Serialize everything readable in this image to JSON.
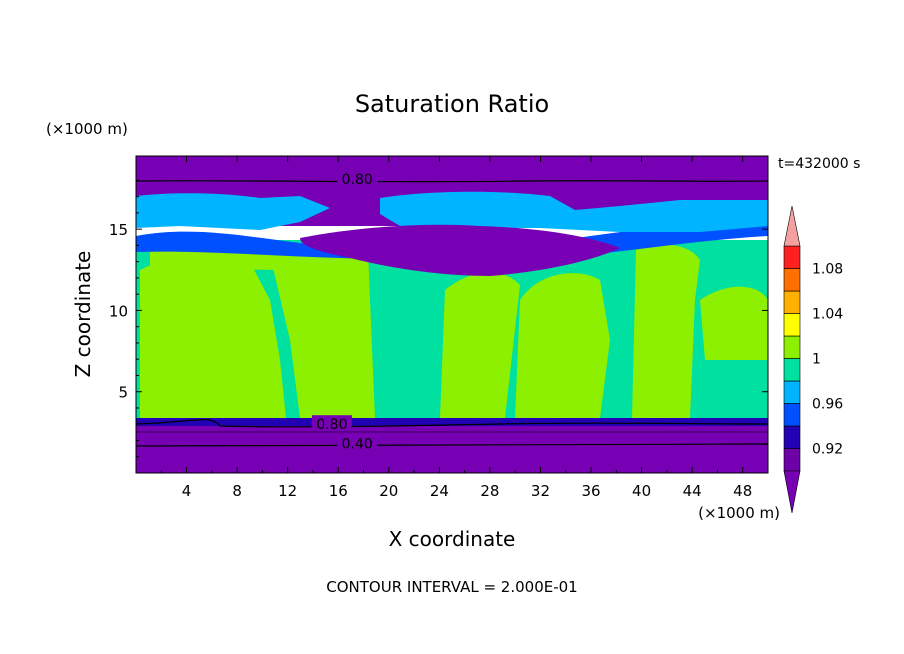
{
  "chart_data": {
    "type": "heatmap",
    "title": "Saturation Ratio",
    "xlabel": "X coordinate",
    "ylabel": "Z coordinate",
    "x_unit": "(×1000 m)",
    "y_unit": "(×1000 m)",
    "time_label": "t=432000 s",
    "footer": "CONTOUR INTERVAL = 2.000E-01",
    "xlim": [
      0,
      50
    ],
    "ylim": [
      0,
      19.5
    ],
    "x_ticks": [
      "4",
      "8",
      "12",
      "16",
      "20",
      "24",
      "28",
      "32",
      "36",
      "40",
      "44",
      "48"
    ],
    "y_ticks": [
      "5",
      "10",
      "15"
    ],
    "colorbar": {
      "levels": [
        0.9,
        0.92,
        0.94,
        0.96,
        0.98,
        1.0,
        1.02,
        1.04,
        1.06,
        1.08,
        1.1
      ],
      "labels": [
        "0.92",
        "0.96",
        "1",
        "1.04",
        "1.08"
      ],
      "colors": [
        "#6e00a8",
        "#2200b4",
        "#0050ff",
        "#00b4ff",
        "#00e0a0",
        "#8cf000",
        "#ffff00",
        "#ffb000",
        "#ff7000",
        "#ff2020"
      ],
      "under_color": "#7800b4",
      "over_color": "#f4a0a0"
    },
    "contour_labels": [
      {
        "value": "0.80",
        "x": 17.5,
        "y": 18.1
      },
      {
        "value": "0.80",
        "x": 15.5,
        "y": 3.0
      },
      {
        "value": "0.40",
        "x": 17.5,
        "y": 1.8
      }
    ],
    "field_bands": [
      {
        "zmin": 0.0,
        "zmax": 3.2,
        "value": "<0.90"
      },
      {
        "zmin": 3.2,
        "zmax": 13.5,
        "value": "0.98-1.02"
      },
      {
        "zmin": 13.5,
        "zmax": 16.0,
        "value": "0.90-0.98"
      },
      {
        "zmin": 16.0,
        "zmax": 17.5,
        "value": "0.96-1.00"
      },
      {
        "zmin": 17.5,
        "zmax": 19.5,
        "value": "<0.90"
      }
    ]
  }
}
